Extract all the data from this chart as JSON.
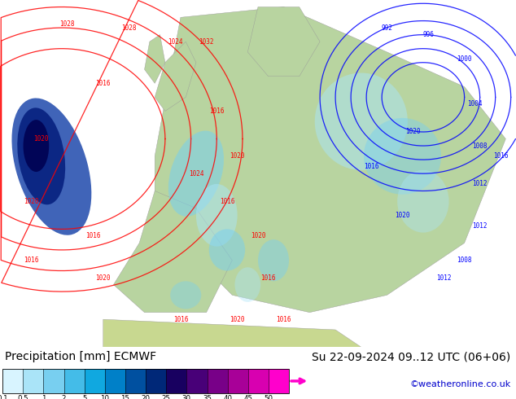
{
  "title_left": "Precipitation [mm] ECMWF",
  "title_right": "Su 22-09-2024 09..12 UTC (06+06)",
  "credit": "©weatheronline.co.uk",
  "colorbar_levels": [
    0.1,
    0.5,
    1,
    2,
    5,
    10,
    15,
    20,
    25,
    30,
    35,
    40,
    45,
    50
  ],
  "colorbar_colors": [
    "#d8f4ff",
    "#aae4f8",
    "#78cff0",
    "#44bce8",
    "#10a8e0",
    "#0080c8",
    "#0050a0",
    "#002878",
    "#180060",
    "#480078",
    "#780088",
    "#a80098",
    "#d800b0",
    "#ff00cc"
  ],
  "arrow_color": "#ff00cc",
  "bg_color": "#ffffff",
  "text_color": "#000000",
  "credit_color": "#0000cc",
  "label_fontsize": 9,
  "credit_fontsize": 8,
  "title_fontsize": 10
}
